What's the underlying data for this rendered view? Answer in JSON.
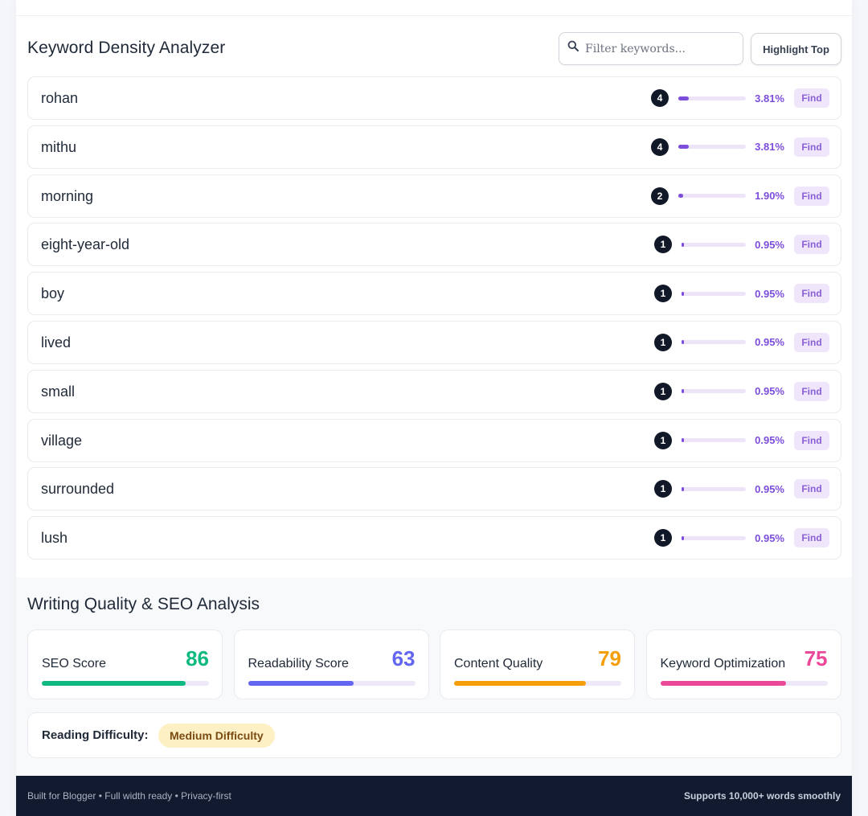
{
  "keyword_density": {
    "title": "Keyword Density Analyzer",
    "search": {
      "placeholder": "Filter keywords...",
      "value": "",
      "icon": "search-icon"
    },
    "highlight_label": "Highlight Top",
    "find_label": "Find",
    "accent_color": "#7c4ddb",
    "keywords": [
      {
        "word": "rohan",
        "count": "4",
        "percent": "3.81%",
        "density": 0.1524
      },
      {
        "word": "mithu",
        "count": "4",
        "percent": "3.81%",
        "density": 0.1524
      },
      {
        "word": "morning",
        "count": "2",
        "percent": "1.90%",
        "density": 0.076
      },
      {
        "word": "eight-year-old",
        "count": "1",
        "percent": "0.95%",
        "density": 0.038
      },
      {
        "word": "boy",
        "count": "1",
        "percent": "0.95%",
        "density": 0.038
      },
      {
        "word": "lived",
        "count": "1",
        "percent": "0.95%",
        "density": 0.038
      },
      {
        "word": "small",
        "count": "1",
        "percent": "0.95%",
        "density": 0.038
      },
      {
        "word": "village",
        "count": "1",
        "percent": "0.95%",
        "density": 0.038
      },
      {
        "word": "surrounded",
        "count": "1",
        "percent": "0.95%",
        "density": 0.038
      },
      {
        "word": "lush",
        "count": "1",
        "percent": "0.95%",
        "density": 0.038
      }
    ]
  },
  "seo": {
    "title": "Writing Quality & SEO Analysis",
    "scores": [
      {
        "label": "SEO Score",
        "value": "86",
        "fraction": 0.86,
        "color": "#10b981"
      },
      {
        "label": "Readability Score",
        "value": "63",
        "fraction": 0.63,
        "color": "#6366f1"
      },
      {
        "label": "Content Quality",
        "value": "79",
        "fraction": 0.79,
        "color": "#f59e0b"
      },
      {
        "label": "Keyword Optimization",
        "value": "75",
        "fraction": 0.75,
        "color": "#ec4899"
      }
    ],
    "difficulty_label": "Reading Difficulty:",
    "difficulty_value": "Medium Difficulty"
  },
  "footer": {
    "left": "Built for Blogger • Full width ready • Privacy-first",
    "right": "Supports 10,000+ words smoothly"
  }
}
